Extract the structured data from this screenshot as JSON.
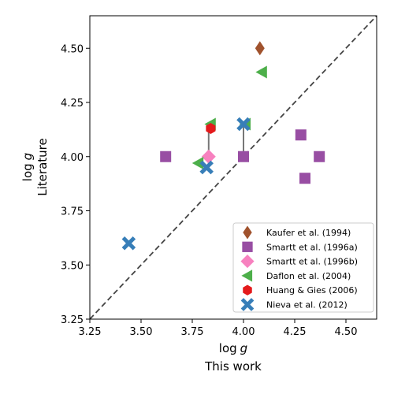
{
  "chart_data": {
    "type": "scatter",
    "xlabel": {
      "line1": "log",
      "line1_italic": "g",
      "line2": "This work"
    },
    "ylabel": {
      "line1": "log",
      "line1_italic": "g",
      "line2": "Literature"
    },
    "xlim": [
      3.25,
      4.65
    ],
    "ylim": [
      3.25,
      4.65
    ],
    "xticks": [
      "3.25",
      "3.50",
      "3.75",
      "4.00",
      "4.25",
      "4.50"
    ],
    "yticks": [
      "3.25",
      "3.50",
      "3.75",
      "4.00",
      "4.25",
      "4.50"
    ],
    "reference_line": {
      "style": "dashed",
      "slope": 1,
      "color": "#444444"
    },
    "legend_position": "lower-right",
    "connectors": [
      {
        "x": 3.83,
        "y1": 3.95,
        "y2": 4.15
      },
      {
        "x": 4.0,
        "y1": 4.0,
        "y2": 4.15
      }
    ],
    "series": [
      {
        "name": "Kaufer et al. (1994)",
        "marker": "diamond",
        "color": "#a0522d",
        "points": [
          {
            "x": 4.08,
            "y": 4.5
          }
        ]
      },
      {
        "name": "Smartt et al. (1996a)",
        "marker": "square",
        "color": "#984ea3",
        "points": [
          {
            "x": 3.62,
            "y": 4.0
          },
          {
            "x": 4.0,
            "y": 4.0
          },
          {
            "x": 4.28,
            "y": 4.1
          },
          {
            "x": 4.3,
            "y": 3.9
          },
          {
            "x": 4.37,
            "y": 4.0
          }
        ]
      },
      {
        "name": "Smartt et al. (1996b)",
        "marker": "diamond-wide",
        "color": "#f781bf",
        "points": [
          {
            "x": 3.83,
            "y": 4.0
          }
        ]
      },
      {
        "name": "Daflon et al. (2004)",
        "marker": "triangle-left",
        "color": "#4daf4a",
        "points": [
          {
            "x": 4.09,
            "y": 4.39
          },
          {
            "x": 3.84,
            "y": 4.15
          },
          {
            "x": 4.01,
            "y": 4.15
          },
          {
            "x": 3.78,
            "y": 3.97
          }
        ]
      },
      {
        "name": "Huang & Gies (2006)",
        "marker": "hexagon",
        "color": "#e41a1c",
        "points": [
          {
            "x": 3.84,
            "y": 4.13
          }
        ]
      },
      {
        "name": "Nieva et al. (2012)",
        "marker": "x-thick",
        "color": "#377eb8",
        "points": [
          {
            "x": 3.44,
            "y": 3.6
          },
          {
            "x": 3.82,
            "y": 3.95
          },
          {
            "x": 4.0,
            "y": 4.15
          }
        ]
      }
    ]
  }
}
